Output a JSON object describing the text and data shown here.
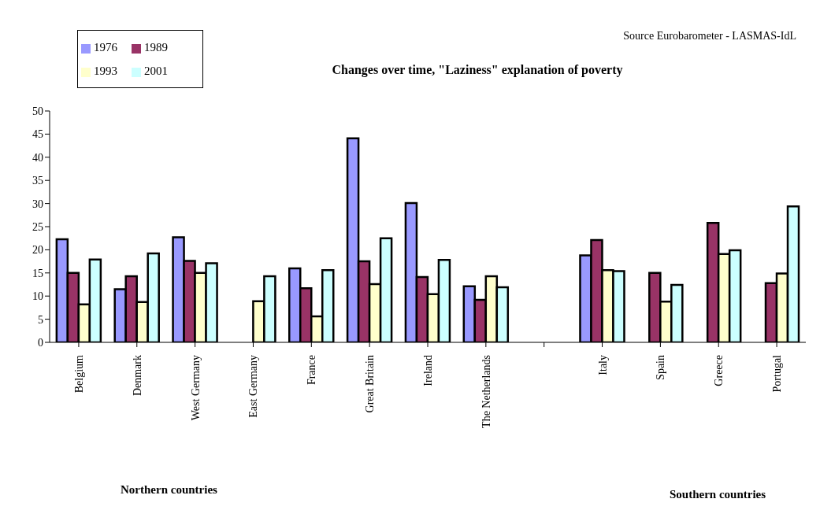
{
  "chart_data": {
    "type": "bar",
    "title": "Changes over time, \"Laziness\" explanation of poverty",
    "categories": [
      "Belgium",
      "Denmark",
      "West Germany",
      "East Germany",
      "France",
      "Great Britain",
      "Ireland",
      "The Netherlands",
      null,
      "Italy",
      "Spain",
      "Greece",
      "Portugal"
    ],
    "series": [
      {
        "name": "1976",
        "color": "#9999ff",
        "values": [
          22.3,
          11.5,
          22.7,
          null,
          16,
          44.1,
          30.1,
          12.1,
          null,
          18.8,
          null,
          null,
          null
        ]
      },
      {
        "name": "1989",
        "color": "#993366",
        "values": [
          15,
          14.3,
          17.6,
          null,
          11.7,
          17.5,
          14.1,
          9.2,
          null,
          22.1,
          15,
          25.8,
          12.8
        ]
      },
      {
        "name": "1993",
        "color": "#ffffcc",
        "values": [
          8.2,
          8.7,
          15,
          8.9,
          5.6,
          12.6,
          10.4,
          14.3,
          null,
          15.6,
          8.8,
          19.1,
          14.9
        ]
      },
      {
        "name": "2001",
        "color": "#ccffff",
        "values": [
          17.9,
          19.2,
          17.1,
          14.3,
          15.6,
          22.5,
          17.8,
          11.9,
          null,
          15.4,
          12.4,
          19.9,
          29.4
        ]
      }
    ],
    "ylim": [
      0,
      50
    ],
    "yticks": [
      0,
      5,
      10,
      15,
      20,
      25,
      30,
      35,
      40,
      45,
      50
    ],
    "grid": false,
    "legend": "top left",
    "annotations": [
      "Source Eurobarometer - LASMAS-IdL",
      "Northern countries",
      "Southern countries"
    ]
  }
}
